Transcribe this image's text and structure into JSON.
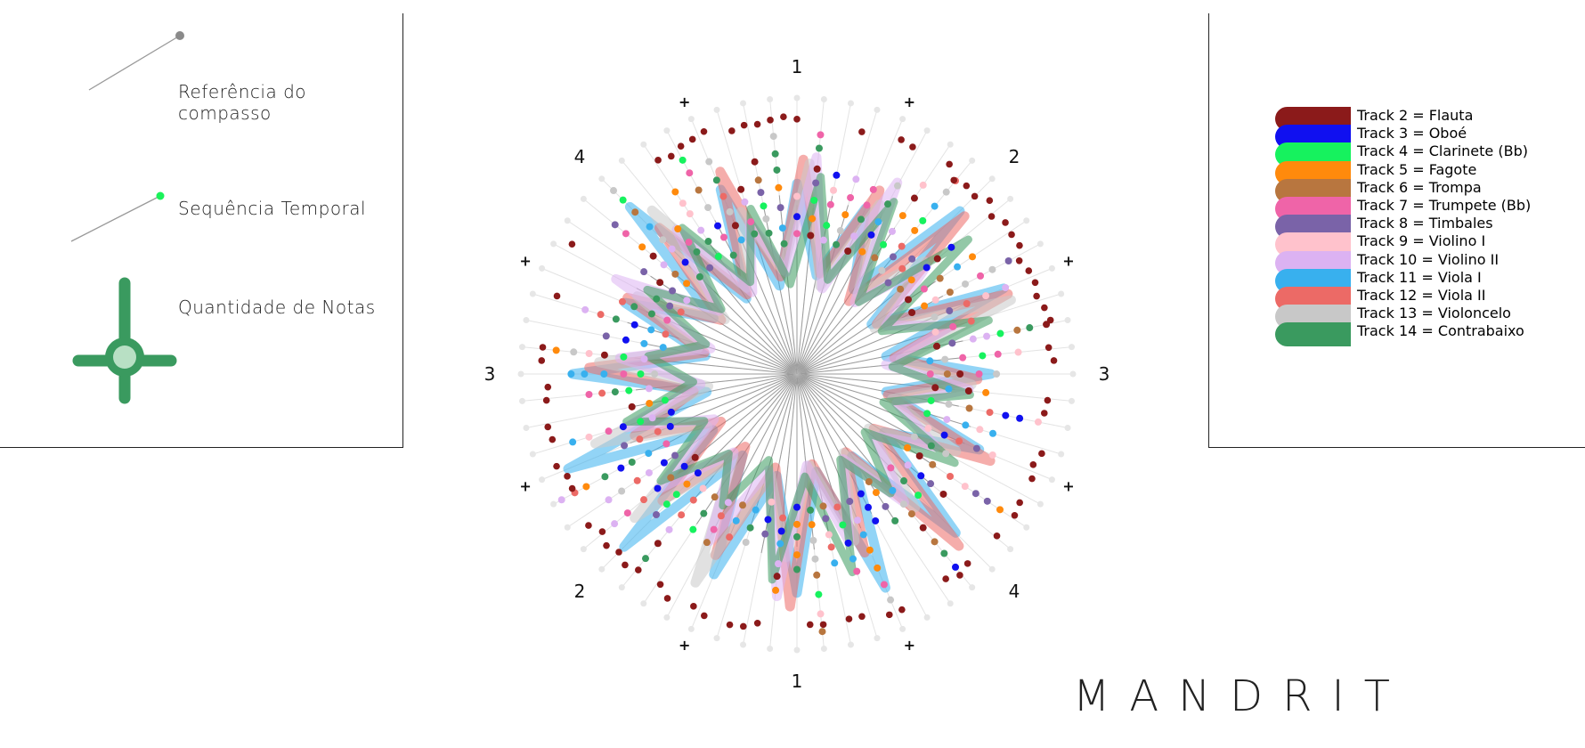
{
  "legend_key": {
    "measure_reference": "Referência do compasso",
    "time_sequence": "Sequência Temporal",
    "note_count": "Quantidade de Notas"
  },
  "colors": {
    "measure_reference": "#999999",
    "time_sequence": "#1af25a",
    "note_count": "#3a9a5f",
    "note_count_inner": "#b8e0c4",
    "spoke": "#9b9b9b",
    "faint_spoke": "#e3e3e3"
  },
  "icons": {
    "measure_reference": "line-with-dot-icon",
    "time_sequence": "line-with-dot-icon",
    "note_count": "crosshair-circle-icon"
  },
  "tracks": [
    {
      "label": "Track 2 = Flauta",
      "color": "#8b1a1a"
    },
    {
      "label": "Track 3 = Oboé",
      "color": "#1010f0"
    },
    {
      "label": "Track 4 = Clarinete (Bb)",
      "color": "#16f25e"
    },
    {
      "label": "Track 5 = Fagote",
      "color": "#ff8a0c"
    },
    {
      "label": "Track 6 = Trompa",
      "color": "#b8763f"
    },
    {
      "label": "Track 7 = Trumpete (Bb)",
      "color": "#ef64a8"
    },
    {
      "label": "Track 8 = Timbales",
      "color": "#7a63a8"
    },
    {
      "label": "Track 9 = Violino I",
      "color": "#ffc2cc"
    },
    {
      "label": "Track 10 = Violino II",
      "color": "#dcb2f2"
    },
    {
      "label": "Track 11 = Viola I",
      "color": "#38b0ee"
    },
    {
      "label": "Track 12 = Viola II",
      "color": "#ec6a66"
    },
    {
      "label": "Track 13 = Violoncelo",
      "color": "#c8c8c8"
    },
    {
      "label": "Track 14 = Contrabaixo",
      "color": "#3a9a5f"
    }
  ],
  "radial_labels": {
    "beats": [
      "1",
      "2",
      "3",
      "4",
      "1",
      "2",
      "3",
      "4"
    ],
    "plus": [
      "+",
      "+",
      "+",
      "+",
      "+",
      "+",
      "+",
      "+"
    ]
  },
  "brand": "MANDRIT"
}
